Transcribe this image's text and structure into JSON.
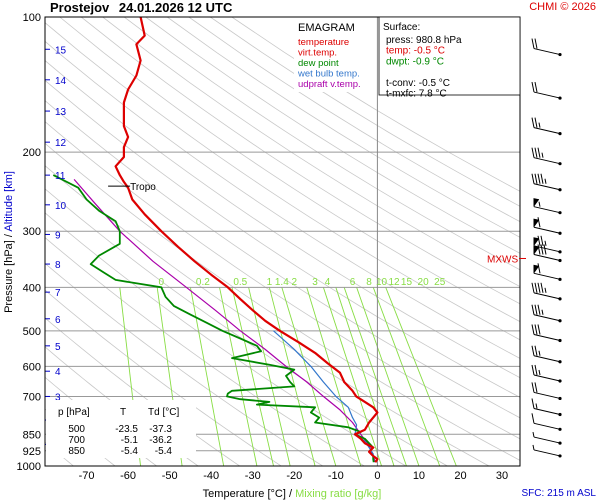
{
  "header": {
    "station": "Prostejov",
    "datetime": "24.01.2026 12 UTC",
    "copyright": "CHMI © 2026"
  },
  "legend": {
    "title": "EMAGRAM",
    "items": [
      {
        "label": "temperature",
        "color": "#dd0000"
      },
      {
        "label": "virt.temp.",
        "color": "#dd0000"
      },
      {
        "label": "dew point",
        "color": "#008800"
      },
      {
        "label": "wet bulb temp.",
        "color": "#3377cc"
      },
      {
        "label": "udpraft v.temp.",
        "color": "#aa00aa"
      }
    ]
  },
  "surface_box": {
    "title": "Surface:",
    "lines": [
      {
        "text": "press: 980.8 hPa",
        "color": "#000000"
      },
      {
        "text": "temp: -0.5 °C",
        "color": "#dd0000"
      },
      {
        "text": "dwpt: -0.9 °C",
        "color": "#008800"
      },
      {
        "text": "",
        "color": "#000000"
      },
      {
        "text": "t-conv: -0.5 °C",
        "color": "#000000"
      },
      {
        "text": "t-mxfc: 7.8 °C",
        "color": "#000000"
      }
    ]
  },
  "table": {
    "header": [
      "p [hPa]",
      "T",
      "Td [°C]"
    ],
    "rows": [
      [
        "500",
        "-23.5",
        "-37.3"
      ],
      [
        "700",
        "-5.1",
        "-36.2"
      ],
      [
        "850",
        "-5.4",
        "-5.4"
      ]
    ]
  },
  "annotations": {
    "tropo": "Tropo",
    "mxws": "MXWS"
  },
  "footer": {
    "sfc": "SFC: 215 m ASL"
  },
  "colors": {
    "temperature": "#dd0000",
    "dewpoint": "#008800",
    "wetbulb": "#3377cc",
    "parcel": "#aa00aa",
    "mixing": "#88dd44",
    "axis_text": "#000000",
    "altitude": "#0000cc",
    "wind": "#000000",
    "mxws": "#dd0000"
  },
  "chart_data": {
    "type": "line",
    "title": "",
    "xlabel": "Temperature [°C]",
    "xlabel_sep": "/",
    "xlabel2": "Mixing ratio [g/kg]",
    "ylabel": "Pressure [hPa]",
    "ylabel_sep": "/",
    "ylabel2": "Altitude [km]",
    "xlim": [
      -80,
      35
    ],
    "ylim": [
      1000,
      100
    ],
    "yscale": "log",
    "x_ticks": [
      -70,
      -60,
      -50,
      -40,
      -30,
      -20,
      -10,
      0,
      10,
      20,
      30
    ],
    "p_ticks": [
      100,
      200,
      300,
      400,
      500,
      600,
      700,
      850,
      925,
      1000
    ],
    "gridlines_p": [
      200,
      300,
      400,
      500,
      600,
      700,
      850,
      925,
      1000
    ],
    "altitude_ticks": [
      {
        "label": "1",
        "p": 895
      },
      {
        "label": "2",
        "p": 790
      },
      {
        "label": "3",
        "p": 700
      },
      {
        "label": "4",
        "p": 615
      },
      {
        "label": "5",
        "p": 540
      },
      {
        "label": "6",
        "p": 470
      },
      {
        "label": "7",
        "p": 410
      },
      {
        "label": "8",
        "p": 355
      },
      {
        "label": "9",
        "p": 305
      },
      {
        "label": "10",
        "p": 262
      },
      {
        "label": "11",
        "p": 225
      },
      {
        "label": "12",
        "p": 190
      },
      {
        "label": "13",
        "p": 162
      },
      {
        "label": "14",
        "p": 138
      },
      {
        "label": "15",
        "p": 118
      }
    ],
    "mixing_ratio_labels": [
      {
        "label": "0",
        "t": -52
      },
      {
        "label": "0.2",
        "t": -42
      },
      {
        "label": "0.5",
        "t": -33
      },
      {
        "label": "1",
        "t": -26
      },
      {
        "label": "1.4",
        "t": -23
      },
      {
        "label": "2",
        "t": -20
      },
      {
        "label": "3",
        "t": -15
      },
      {
        "label": "4",
        "t": -12
      },
      {
        "label": "6",
        "t": -6
      },
      {
        "label": "8",
        "t": -2
      },
      {
        "label": "10",
        "t": 1
      },
      {
        "label": "12",
        "t": 4
      },
      {
        "label": "15",
        "t": 7
      },
      {
        "label": "20",
        "t": 11
      },
      {
        "label": "25",
        "t": 15
      }
    ],
    "mixing_ratio_label_p": 395,
    "mixing_lines": [
      {
        "t1000": -57,
        "t400": -62
      },
      {
        "t1000": -47,
        "t400": -53
      },
      {
        "t1000": -37,
        "t400": -45
      },
      {
        "t1000": -29,
        "t400": -38
      },
      {
        "t1000": -25,
        "t400": -35
      },
      {
        "t1000": -21,
        "t400": -31
      },
      {
        "t1000": -15,
        "t400": -26
      },
      {
        "t1000": -10,
        "t400": -23
      },
      {
        "t1000": -4,
        "t400": -17
      },
      {
        "t1000": 1,
        "t400": -13
      },
      {
        "t1000": 4,
        "t400": -10
      },
      {
        "t1000": 7,
        "t400": -8
      },
      {
        "t1000": 10,
        "t400": -5
      },
      {
        "t1000": 15,
        "t400": -1
      },
      {
        "t1000": 19,
        "t400": 2
      }
    ],
    "tropopause": {
      "p": 238,
      "t": -60
    },
    "mxws_p": 345,
    "series": [
      {
        "name": "temperature",
        "points": [
          [
            100,
            -57
          ],
          [
            110,
            -56
          ],
          [
            115,
            -58
          ],
          [
            125,
            -57
          ],
          [
            135,
            -58
          ],
          [
            145,
            -60
          ],
          [
            155,
            -61
          ],
          [
            165,
            -61
          ],
          [
            175,
            -61
          ],
          [
            185,
            -60
          ],
          [
            195,
            -61
          ],
          [
            205,
            -61
          ],
          [
            215,
            -63
          ],
          [
            225,
            -62
          ],
          [
            233,
            -61
          ],
          [
            240,
            -60
          ],
          [
            255,
            -59
          ],
          [
            275,
            -56
          ],
          [
            300,
            -52
          ],
          [
            325,
            -48
          ],
          [
            350,
            -44
          ],
          [
            375,
            -40
          ],
          [
            400,
            -36
          ],
          [
            425,
            -33
          ],
          [
            450,
            -30
          ],
          [
            475,
            -27
          ],
          [
            500,
            -23.5
          ],
          [
            530,
            -19
          ],
          [
            560,
            -15
          ],
          [
            590,
            -12
          ],
          [
            620,
            -9
          ],
          [
            650,
            -8
          ],
          [
            680,
            -6
          ],
          [
            700,
            -5.1
          ],
          [
            720,
            -3
          ],
          [
            740,
            -1
          ],
          [
            760,
            0
          ],
          [
            780,
            -1
          ],
          [
            800,
            -2
          ],
          [
            830,
            -3
          ],
          [
            850,
            -5.4
          ],
          [
            870,
            -4
          ],
          [
            890,
            -3
          ],
          [
            910,
            -1
          ],
          [
            930,
            -2
          ],
          [
            950,
            -1
          ],
          [
            965,
            0
          ],
          [
            980.8,
            -0.5
          ]
        ]
      },
      {
        "name": "dew point",
        "points": [
          [
            225,
            -78
          ],
          [
            240,
            -72
          ],
          [
            255,
            -70
          ],
          [
            270,
            -67
          ],
          [
            285,
            -63
          ],
          [
            300,
            -62
          ],
          [
            320,
            -62
          ],
          [
            340,
            -67
          ],
          [
            355,
            -69
          ],
          [
            370,
            -66
          ],
          [
            385,
            -63
          ],
          [
            400,
            -52
          ],
          [
            420,
            -51
          ],
          [
            440,
            -49
          ],
          [
            460,
            -45
          ],
          [
            480,
            -41
          ],
          [
            500,
            -37.3
          ],
          [
            520,
            -33
          ],
          [
            540,
            -29
          ],
          [
            555,
            -28
          ],
          [
            575,
            -35
          ],
          [
            595,
            -26
          ],
          [
            610,
            -20
          ],
          [
            630,
            -22
          ],
          [
            650,
            -21
          ],
          [
            665,
            -20
          ],
          [
            680,
            -35
          ],
          [
            690,
            -36
          ],
          [
            700,
            -36.2
          ],
          [
            710,
            -33
          ],
          [
            720,
            -26
          ],
          [
            730,
            -29
          ],
          [
            740,
            -15
          ],
          [
            760,
            -16
          ],
          [
            780,
            -14
          ],
          [
            800,
            -15
          ],
          [
            820,
            -7
          ],
          [
            840,
            -4
          ],
          [
            850,
            -5.4
          ],
          [
            870,
            -3
          ],
          [
            890,
            -2
          ],
          [
            910,
            -1
          ],
          [
            930,
            -2
          ],
          [
            950,
            -1
          ],
          [
            965,
            -1
          ],
          [
            980.8,
            -0.9
          ]
        ]
      },
      {
        "name": "wet bulb temp.",
        "points": [
          [
            500,
            -25
          ],
          [
            550,
            -20
          ],
          [
            600,
            -16
          ],
          [
            650,
            -13
          ],
          [
            700,
            -10
          ],
          [
            740,
            -7
          ],
          [
            780,
            -6
          ],
          [
            810,
            -5
          ],
          [
            850,
            -5.4
          ],
          [
            880,
            -3
          ],
          [
            910,
            -2
          ],
          [
            940,
            -1
          ],
          [
            965,
            -1
          ],
          [
            980.8,
            -0.7
          ]
        ]
      },
      {
        "name": "udpraft v.temp.",
        "points": [
          [
            230,
            -73
          ],
          [
            260,
            -68
          ],
          [
            300,
            -62
          ],
          [
            350,
            -54
          ],
          [
            400,
            -46
          ],
          [
            450,
            -39
          ],
          [
            500,
            -33
          ],
          [
            550,
            -27
          ],
          [
            600,
            -22
          ],
          [
            650,
            -17
          ],
          [
            700,
            -13
          ],
          [
            750,
            -9
          ],
          [
            800,
            -6
          ],
          [
            850,
            -4
          ],
          [
            900,
            -2
          ],
          [
            950,
            -1
          ],
          [
            980.8,
            -0.5
          ]
        ]
      }
    ],
    "wind_barbs": [
      {
        "p": 120,
        "speed_kt": 20
      },
      {
        "p": 150,
        "speed_kt": 20
      },
      {
        "p": 180,
        "speed_kt": 25
      },
      {
        "p": 210,
        "speed_kt": 35
      },
      {
        "p": 240,
        "speed_kt": 45
      },
      {
        "p": 270,
        "speed_kt": 55
      },
      {
        "p": 300,
        "speed_kt": 60
      },
      {
        "p": 330,
        "speed_kt": 75
      },
      {
        "p": 345,
        "speed_kt": 80
      },
      {
        "p": 380,
        "speed_kt": 60
      },
      {
        "p": 420,
        "speed_kt": 45
      },
      {
        "p": 470,
        "speed_kt": 35
      },
      {
        "p": 520,
        "speed_kt": 30
      },
      {
        "p": 580,
        "speed_kt": 25
      },
      {
        "p": 640,
        "speed_kt": 25
      },
      {
        "p": 700,
        "speed_kt": 20
      },
      {
        "p": 760,
        "speed_kt": 15
      },
      {
        "p": 820,
        "speed_kt": 10
      },
      {
        "p": 880,
        "speed_kt": 5
      },
      {
        "p": 940,
        "speed_kt": 5
      }
    ]
  }
}
